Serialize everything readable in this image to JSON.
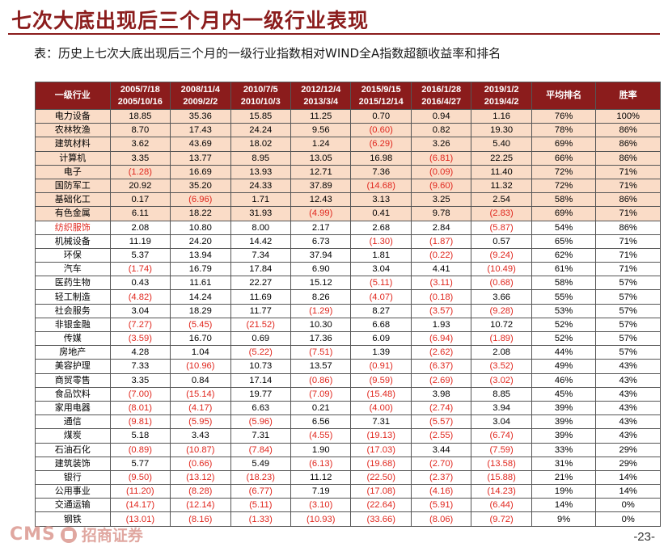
{
  "title": "七次大底出现后三个月内一级行业表现",
  "subtitle": "表：历史上七次大底出现后三个月的一级行业指数相对WIND全A指数超额收益率和排名",
  "table": {
    "header_industry": "一级行业",
    "periods": [
      {
        "start": "2005/7/18",
        "end": "2005/10/16"
      },
      {
        "start": "2008/11/4",
        "end": "2009/2/2"
      },
      {
        "start": "2010/7/5",
        "end": "2010/10/3"
      },
      {
        "start": "2012/12/4",
        "end": "2013/3/4"
      },
      {
        "start": "2015/9/15",
        "end": "2015/12/14"
      },
      {
        "start": "2016/1/28",
        "end": "2016/4/27"
      },
      {
        "start": "2019/1/2",
        "end": "2019/4/2"
      }
    ],
    "header_avg_rank": "平均排名",
    "header_win_rate": "胜率",
    "rows": [
      {
        "industry": "电力设备",
        "values": [
          "18.85",
          "35.36",
          "15.85",
          "11.25",
          "0.70",
          "0.94",
          "1.16"
        ],
        "avg_rank": "76%",
        "win_rate": "100%"
      },
      {
        "industry": "农林牧渔",
        "values": [
          "8.70",
          "17.43",
          "24.24",
          "9.56",
          "(0.60)",
          "0.82",
          "19.30"
        ],
        "avg_rank": "78%",
        "win_rate": "86%"
      },
      {
        "industry": "建筑材料",
        "values": [
          "3.62",
          "43.69",
          "18.02",
          "1.24",
          "(6.29)",
          "3.26",
          "5.40"
        ],
        "avg_rank": "69%",
        "win_rate": "86%"
      },
      {
        "industry": "计算机",
        "values": [
          "3.35",
          "13.77",
          "8.95",
          "13.05",
          "16.98",
          "(6.81)",
          "22.25"
        ],
        "avg_rank": "66%",
        "win_rate": "86%"
      },
      {
        "industry": "电子",
        "values": [
          "(1.28)",
          "16.69",
          "13.93",
          "12.71",
          "7.36",
          "(0.09)",
          "11.40"
        ],
        "avg_rank": "72%",
        "win_rate": "71%"
      },
      {
        "industry": "国防军工",
        "values": [
          "20.92",
          "35.20",
          "24.33",
          "37.89",
          "(14.68)",
          "(9.60)",
          "11.32"
        ],
        "avg_rank": "72%",
        "win_rate": "71%"
      },
      {
        "industry": "基础化工",
        "values": [
          "0.17",
          "(6.96)",
          "1.71",
          "12.43",
          "3.13",
          "3.25",
          "2.54"
        ],
        "avg_rank": "58%",
        "win_rate": "86%"
      },
      {
        "industry": "有色金属",
        "values": [
          "6.11",
          "18.22",
          "31.93",
          "(4.99)",
          "0.41",
          "9.78",
          "(2.83)"
        ],
        "avg_rank": "69%",
        "win_rate": "71%"
      },
      {
        "industry": "纺织服饰",
        "values": [
          "2.08",
          "10.80",
          "8.00",
          "2.17",
          "2.68",
          "2.84",
          "(5.87)"
        ],
        "avg_rank": "54%",
        "win_rate": "86%"
      },
      {
        "industry": "机械设备",
        "values": [
          "11.19",
          "24.20",
          "14.42",
          "6.73",
          "(1.30)",
          "(1.87)",
          "0.57"
        ],
        "avg_rank": "65%",
        "win_rate": "71%"
      },
      {
        "industry": "环保",
        "values": [
          "5.37",
          "13.94",
          "7.34",
          "37.94",
          "1.81",
          "(0.22)",
          "(9.24)"
        ],
        "avg_rank": "62%",
        "win_rate": "71%"
      },
      {
        "industry": "汽车",
        "values": [
          "(1.74)",
          "16.79",
          "17.84",
          "6.90",
          "3.04",
          "4.41",
          "(10.49)"
        ],
        "avg_rank": "61%",
        "win_rate": "71%"
      },
      {
        "industry": "医药生物",
        "values": [
          "0.43",
          "11.61",
          "22.27",
          "15.12",
          "(5.11)",
          "(3.11)",
          "(0.68)"
        ],
        "avg_rank": "58%",
        "win_rate": "57%"
      },
      {
        "industry": "轻工制造",
        "values": [
          "(4.82)",
          "14.24",
          "11.69",
          "8.26",
          "(4.07)",
          "(0.18)",
          "3.66"
        ],
        "avg_rank": "55%",
        "win_rate": "57%"
      },
      {
        "industry": "社会服务",
        "values": [
          "3.04",
          "18.29",
          "11.77",
          "(1.29)",
          "8.27",
          "(3.57)",
          "(9.28)"
        ],
        "avg_rank": "53%",
        "win_rate": "57%"
      },
      {
        "industry": "非银金融",
        "values": [
          "(7.27)",
          "(5.45)",
          "(21.52)",
          "10.30",
          "6.68",
          "1.93",
          "10.72"
        ],
        "avg_rank": "52%",
        "win_rate": "57%"
      },
      {
        "industry": "传媒",
        "values": [
          "(3.59)",
          "16.70",
          "0.69",
          "17.36",
          "6.09",
          "(6.94)",
          "(1.89)"
        ],
        "avg_rank": "52%",
        "win_rate": "57%"
      },
      {
        "industry": "房地产",
        "values": [
          "4.28",
          "1.04",
          "(5.22)",
          "(7.51)",
          "1.39",
          "(2.62)",
          "2.08"
        ],
        "avg_rank": "44%",
        "win_rate": "57%"
      },
      {
        "industry": "美容护理",
        "values": [
          "7.33",
          "(10.96)",
          "10.73",
          "13.57",
          "(0.91)",
          "(6.37)",
          "(3.52)"
        ],
        "avg_rank": "49%",
        "win_rate": "43%"
      },
      {
        "industry": "商贸零售",
        "values": [
          "3.35",
          "0.84",
          "17.14",
          "(0.86)",
          "(9.59)",
          "(2.69)",
          "(3.02)"
        ],
        "avg_rank": "46%",
        "win_rate": "43%"
      },
      {
        "industry": "食品饮料",
        "values": [
          "(7.00)",
          "(15.14)",
          "19.77",
          "(7.09)",
          "(15.48)",
          "3.98",
          "8.85"
        ],
        "avg_rank": "45%",
        "win_rate": "43%"
      },
      {
        "industry": "家用电器",
        "values": [
          "(8.01)",
          "(4.17)",
          "6.63",
          "0.21",
          "(4.00)",
          "(2.74)",
          "3.94"
        ],
        "avg_rank": "39%",
        "win_rate": "43%"
      },
      {
        "industry": "通信",
        "values": [
          "(9.81)",
          "(5.95)",
          "(5.96)",
          "6.56",
          "7.31",
          "(5.57)",
          "3.04"
        ],
        "avg_rank": "39%",
        "win_rate": "43%"
      },
      {
        "industry": "煤炭",
        "values": [
          "5.18",
          "3.43",
          "7.31",
          "(4.55)",
          "(19.13)",
          "(2.55)",
          "(6.74)"
        ],
        "avg_rank": "39%",
        "win_rate": "43%"
      },
      {
        "industry": "石油石化",
        "values": [
          "(0.89)",
          "(10.87)",
          "(7.84)",
          "1.90",
          "(17.03)",
          "3.44",
          "(7.59)"
        ],
        "avg_rank": "33%",
        "win_rate": "29%"
      },
      {
        "industry": "建筑装饰",
        "values": [
          "5.77",
          "(0.66)",
          "5.49",
          "(6.13)",
          "(19.68)",
          "(2.70)",
          "(13.58)"
        ],
        "avg_rank": "31%",
        "win_rate": "29%"
      },
      {
        "industry": "银行",
        "values": [
          "(9.50)",
          "(13.12)",
          "(18.23)",
          "11.12",
          "(22.50)",
          "(2.37)",
          "(15.88)"
        ],
        "avg_rank": "21%",
        "win_rate": "14%"
      },
      {
        "industry": "公用事业",
        "values": [
          "(11.20)",
          "(8.28)",
          "(6.77)",
          "7.19",
          "(17.08)",
          "(4.16)",
          "(14.23)"
        ],
        "avg_rank": "19%",
        "win_rate": "14%"
      },
      {
        "industry": "交通运输",
        "values": [
          "(14.17)",
          "(12.14)",
          "(5.11)",
          "(3.10)",
          "(22.64)",
          "(5.91)",
          "(6.44)"
        ],
        "avg_rank": "14%",
        "win_rate": "0%"
      },
      {
        "industry": "钢铁",
        "values": [
          "(13.01)",
          "(8.16)",
          "(1.33)",
          "(10.93)",
          "(33.66)",
          "(8.06)",
          "(9.72)"
        ],
        "avg_rank": "9%",
        "win_rate": "0%"
      }
    ],
    "highlight_row_count": 8,
    "red_industry_label": "纺织服饰"
  },
  "colors": {
    "brand_red": "#8b1c1c",
    "highlight_fill": "#fadcc7",
    "negative_text": "#e0271e"
  },
  "footer": {
    "logo_text": "CMS",
    "logo_cn": "招商证券",
    "page_number": "-23-"
  }
}
